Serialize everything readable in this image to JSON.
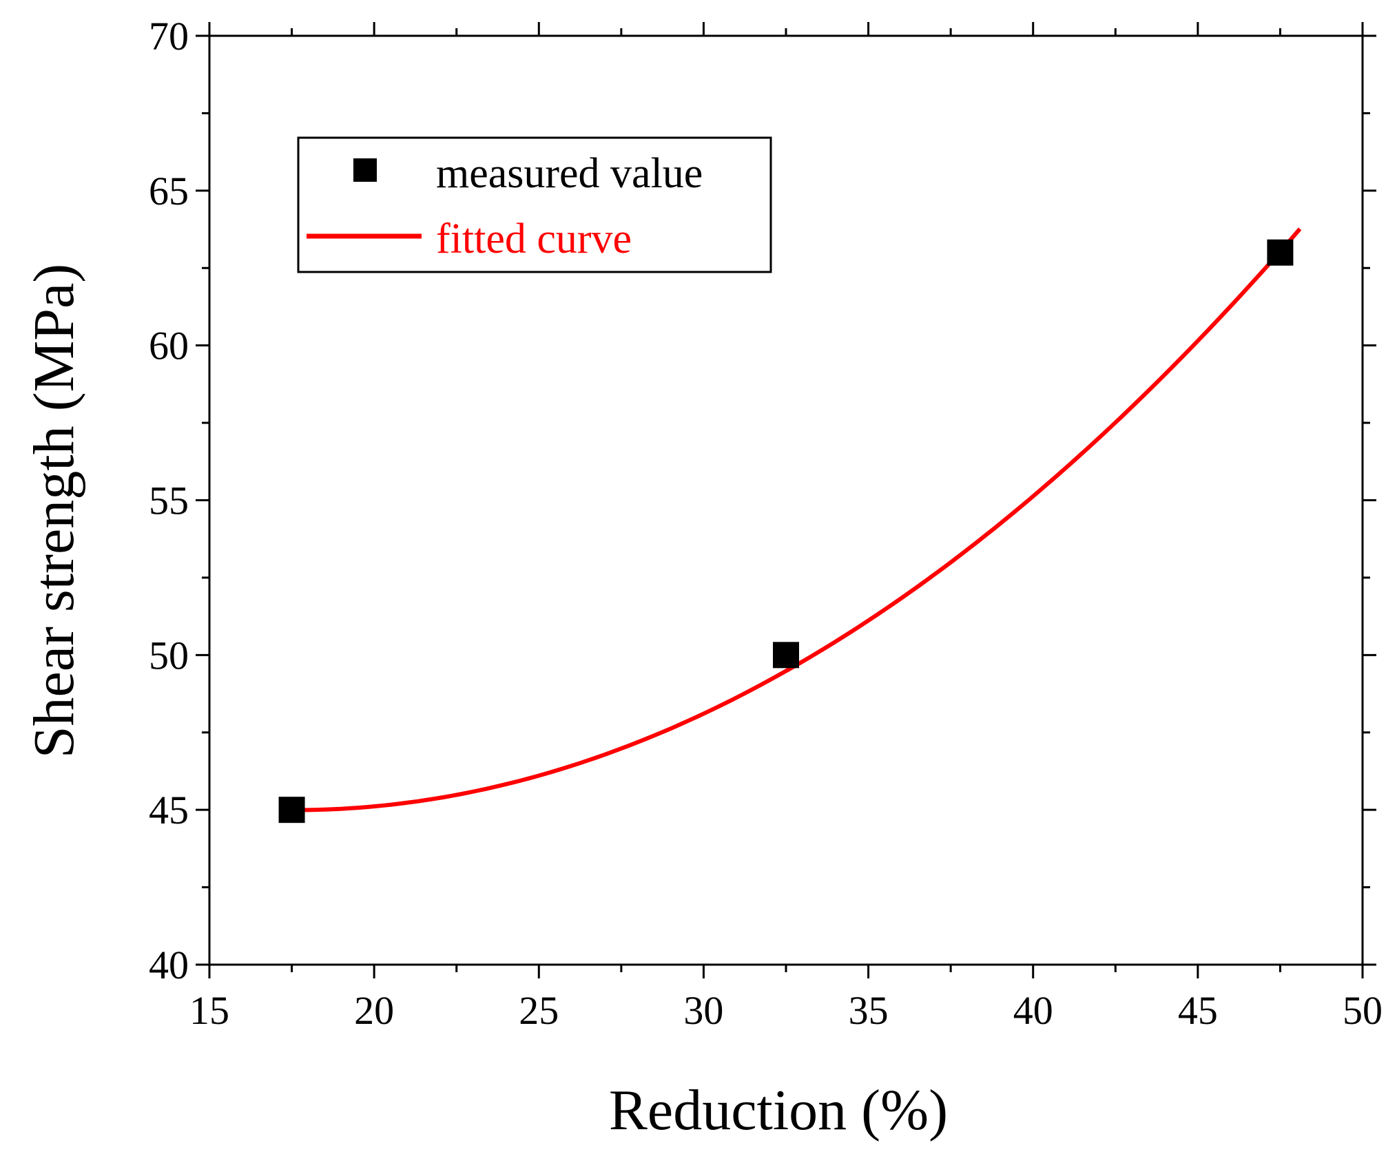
{
  "chart_data": {
    "type": "scatter",
    "xlabel": "Reduction (%)",
    "ylabel": "Shear strength (MPa)",
    "xlim": [
      15,
      50
    ],
    "ylim": [
      40,
      70
    ],
    "xticks": [
      15,
      20,
      25,
      30,
      35,
      40,
      45,
      50
    ],
    "yticks": [
      40,
      45,
      50,
      55,
      60,
      65,
      70
    ],
    "x_tick_labels": [
      "15",
      "20",
      "25",
      "30",
      "35",
      "40",
      "45",
      "50"
    ],
    "y_tick_labels": [
      "40",
      "45",
      "50",
      "55",
      "60",
      "65",
      "70"
    ],
    "legend_position": "top-left",
    "series": [
      {
        "name": "measured value",
        "kind": "scatter",
        "marker": "square",
        "color": "#000000",
        "x": [
          17.5,
          32.5,
          47.5
        ],
        "y": [
          45,
          50,
          63
        ]
      },
      {
        "name": "fitted curve",
        "kind": "line",
        "color": "#ff0000",
        "x_range": [
          17.2,
          48.1
        ],
        "fit": "quadratic",
        "coefficients": {
          "a": 0.02013,
          "b": -0.70703,
          "c": 51.2
        }
      }
    ]
  }
}
